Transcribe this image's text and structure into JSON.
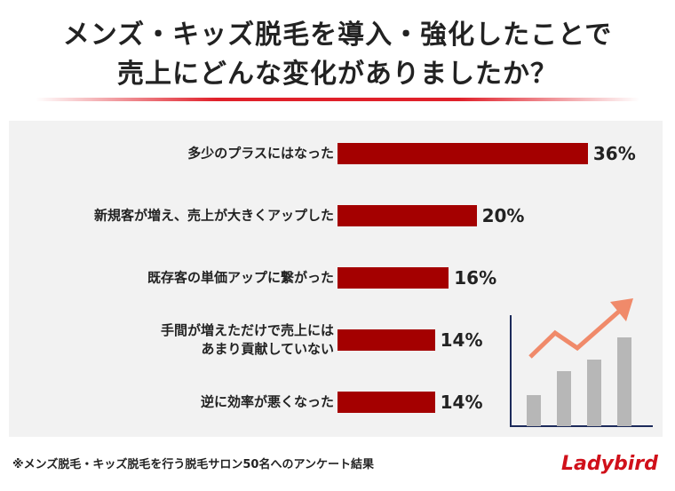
{
  "chart_data": {
    "type": "bar",
    "orientation": "horizontal",
    "title": [
      "メンズ・キッズ脱毛を導入・強化したことで",
      "売上にどんな変化がありましたか？"
    ],
    "categories": [
      "多少のプラスにはなった",
      "新規客が増え、売上が大きくアップした",
      "既存客の単価アップに繋がった",
      "手間が増えただけで売上には\nあまり貢献していない",
      "逆に効率が悪くなった"
    ],
    "values": [
      36,
      20,
      16,
      14,
      14
    ],
    "value_labels": [
      "36%",
      "20%",
      "16%",
      "14%",
      "14%"
    ],
    "color": "#a40000",
    "footnote": "※メンズ脱毛・キッズ脱毛を行う脱毛サロン50名へのアンケート結果",
    "logo": "Ladybird"
  }
}
